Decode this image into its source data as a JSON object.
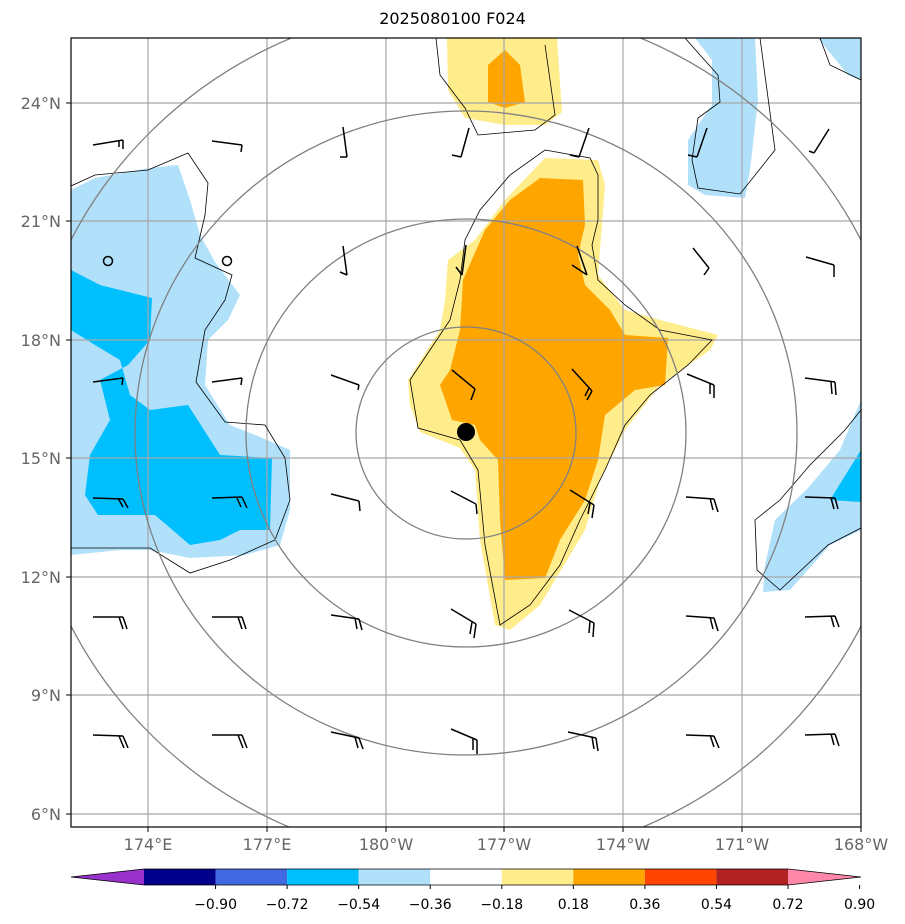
{
  "title": "2025080100 F024",
  "map": {
    "lat_ticks": [
      "24°N",
      "21°N",
      "18°N",
      "15°N",
      "12°N",
      "9°N",
      "6°N"
    ],
    "lon_ticks": [
      "174°E",
      "177°E",
      "180°W",
      "177°W",
      "174°W",
      "171°W",
      "168°W"
    ],
    "storm_marker": "black-dot",
    "fill_colors": {
      "light_blue": "#b0e0fa",
      "blue": "#00bfff",
      "light_yellow": "#ffec8b",
      "orange": "#ffa500"
    }
  },
  "colorbar": {
    "labels": [
      "−0.90",
      "−0.72",
      "−0.54",
      "−0.36",
      "−0.18",
      "0.18",
      "0.36",
      "0.54",
      "0.72",
      "0.90"
    ],
    "colors": [
      "#9932cc",
      "#00008b",
      "#4169e1",
      "#00bfff",
      "#b0e0fa",
      "#ffffff",
      "#ffec8b",
      "#ffa500",
      "#ff4500",
      "#b22222",
      "#ff88aa"
    ]
  }
}
